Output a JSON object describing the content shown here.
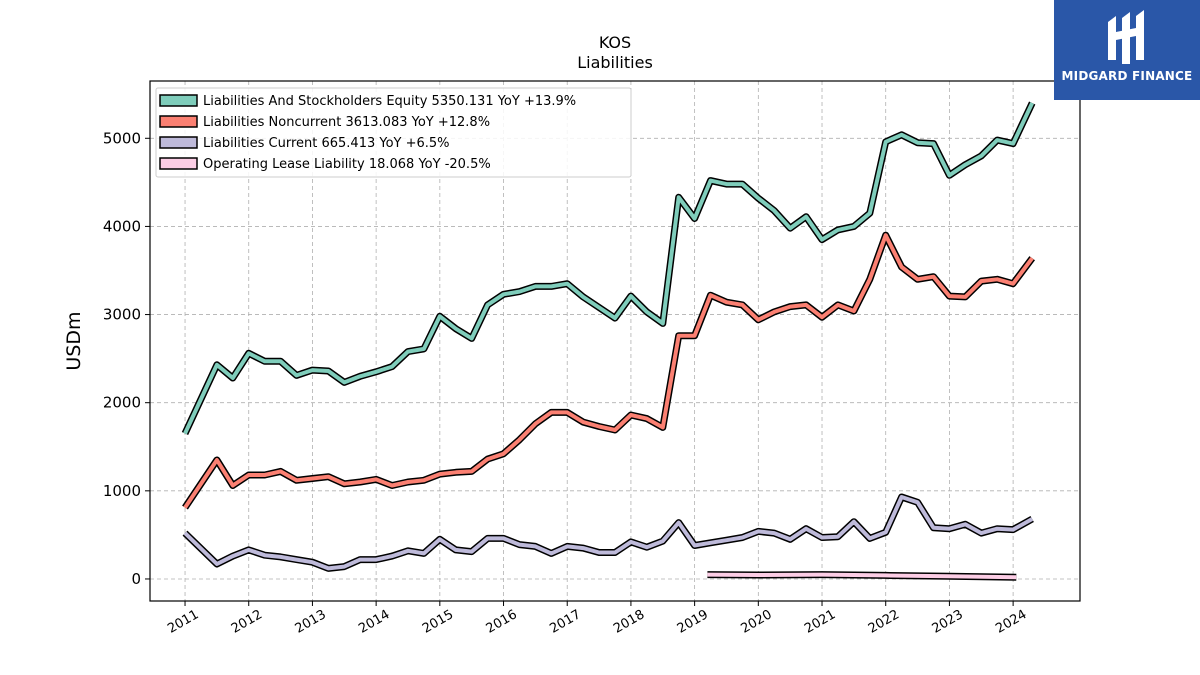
{
  "chart_data": {
    "type": "line",
    "title": "KOS",
    "subtitle": "Liabilities",
    "xlabel": "",
    "ylabel": "USDm",
    "xlim": [
      2010.45,
      2025.05
    ],
    "ylim": [
      -250,
      5650
    ],
    "yticks": [
      0,
      1000,
      2000,
      3000,
      4000,
      5000
    ],
    "xticks": [
      2011,
      2012,
      2013,
      2014,
      2015,
      2016,
      2017,
      2018,
      2019,
      2020,
      2021,
      2022,
      2023,
      2024
    ],
    "xtick_labels": [
      "2011",
      "2012",
      "2013",
      "2014",
      "2015",
      "2016",
      "2017",
      "2018",
      "2019",
      "2020",
      "2021",
      "2022",
      "2023",
      "2024"
    ],
    "grid": true,
    "legend_position": "top-left",
    "series": [
      {
        "name": "Liabilities And Stockholders Equity",
        "legend_label": "Liabilities And Stockholders Equity  5350.131 YoY +13.9%",
        "color": "#7fcdbb",
        "x": [
          2011.0,
          2011.5,
          2011.75,
          2012.0,
          2012.25,
          2012.5,
          2012.75,
          2013.0,
          2013.25,
          2013.5,
          2013.75,
          2014.0,
          2014.25,
          2014.5,
          2014.75,
          2015.0,
          2015.25,
          2015.5,
          2015.75,
          2016.0,
          2016.25,
          2016.5,
          2016.75,
          2017.0,
          2017.25,
          2017.5,
          2017.75,
          2018.0,
          2018.25,
          2018.5,
          2018.75,
          2019.0,
          2019.25,
          2019.5,
          2019.75,
          2020.0,
          2020.25,
          2020.5,
          2020.75,
          2021.0,
          2021.25,
          2021.5,
          2021.75,
          2022.0,
          2022.25,
          2022.5,
          2022.75,
          2023.0,
          2023.25,
          2023.5,
          2023.75,
          2024.0,
          2024.3
        ],
        "values": [
          1650,
          2430,
          2280,
          2560,
          2470,
          2470,
          2310,
          2370,
          2360,
          2230,
          2300,
          2350,
          2410,
          2580,
          2610,
          2980,
          2840,
          2730,
          3110,
          3230,
          3260,
          3320,
          3320,
          3350,
          3200,
          3080,
          2960,
          3210,
          3030,
          2900,
          4330,
          4090,
          4520,
          4480,
          4480,
          4320,
          4180,
          3980,
          4110,
          3850,
          3960,
          4000,
          4150,
          4960,
          5040,
          4950,
          4940,
          4580,
          4700,
          4800,
          4980,
          4940,
          5400
        ]
      },
      {
        "name": "Liabilities Noncurrent",
        "legend_label": "Liabilities Noncurrent  3613.083 YoY +12.8%",
        "color": "#fb8072",
        "x": [
          2011.0,
          2011.5,
          2011.75,
          2012.0,
          2012.25,
          2012.5,
          2012.75,
          2013.0,
          2013.25,
          2013.5,
          2013.75,
          2014.0,
          2014.25,
          2014.5,
          2014.75,
          2015.0,
          2015.25,
          2015.5,
          2015.75,
          2016.0,
          2016.25,
          2016.5,
          2016.75,
          2017.0,
          2017.25,
          2017.5,
          2017.75,
          2018.0,
          2018.25,
          2018.5,
          2018.75,
          2019.0,
          2019.25,
          2019.5,
          2019.75,
          2020.0,
          2020.25,
          2020.5,
          2020.75,
          2021.0,
          2021.25,
          2021.5,
          2021.75,
          2022.0,
          2022.25,
          2022.5,
          2022.75,
          2023.0,
          2023.25,
          2023.5,
          2023.75,
          2024.0,
          2024.3
        ],
        "values": [
          810,
          1350,
          1060,
          1180,
          1180,
          1220,
          1120,
          1140,
          1160,
          1080,
          1100,
          1130,
          1060,
          1100,
          1120,
          1190,
          1210,
          1220,
          1360,
          1420,
          1580,
          1760,
          1890,
          1890,
          1780,
          1730,
          1690,
          1860,
          1820,
          1720,
          2760,
          2760,
          3220,
          3140,
          3110,
          2940,
          3030,
          3090,
          3110,
          2970,
          3110,
          3040,
          3400,
          3900,
          3540,
          3400,
          3430,
          3210,
          3200,
          3380,
          3400,
          3350,
          3640
        ]
      },
      {
        "name": "Liabilities Current",
        "legend_label": "Liabilities Current  665.413 YoY +6.5%",
        "color": "#bebada",
        "x": [
          2011.0,
          2011.5,
          2011.75,
          2012.0,
          2012.25,
          2012.5,
          2012.75,
          2013.0,
          2013.25,
          2013.5,
          2013.75,
          2014.0,
          2014.25,
          2014.5,
          2014.75,
          2015.0,
          2015.25,
          2015.5,
          2015.75,
          2016.0,
          2016.25,
          2016.5,
          2016.75,
          2017.0,
          2017.25,
          2017.5,
          2017.75,
          2018.0,
          2018.25,
          2018.5,
          2018.75,
          2019.0,
          2019.25,
          2019.5,
          2019.75,
          2020.0,
          2020.25,
          2020.5,
          2020.75,
          2021.0,
          2021.25,
          2021.5,
          2021.75,
          2022.0,
          2022.25,
          2022.5,
          2022.75,
          2023.0,
          2023.25,
          2023.5,
          2023.75,
          2024.0,
          2024.3
        ],
        "values": [
          520,
          170,
          260,
          330,
          270,
          250,
          220,
          190,
          120,
          140,
          220,
          220,
          260,
          320,
          290,
          450,
          330,
          310,
          460,
          460,
          390,
          370,
          290,
          370,
          350,
          300,
          300,
          420,
          360,
          430,
          640,
          380,
          410,
          440,
          470,
          540,
          520,
          450,
          570,
          470,
          480,
          650,
          460,
          530,
          930,
          870,
          580,
          570,
          620,
          520,
          570,
          560,
          680
        ]
      },
      {
        "name": "Operating Lease Liability",
        "legend_label": "Operating Lease Liability  18.068 YoY -20.5%",
        "color": "#fccde5",
        "x": [
          2019.2,
          2020.0,
          2021.0,
          2022.0,
          2023.0,
          2024.05
        ],
        "values": [
          50,
          45,
          50,
          40,
          30,
          20
        ]
      }
    ]
  },
  "logo": {
    "text": "MIDGARD FINANCE"
  }
}
